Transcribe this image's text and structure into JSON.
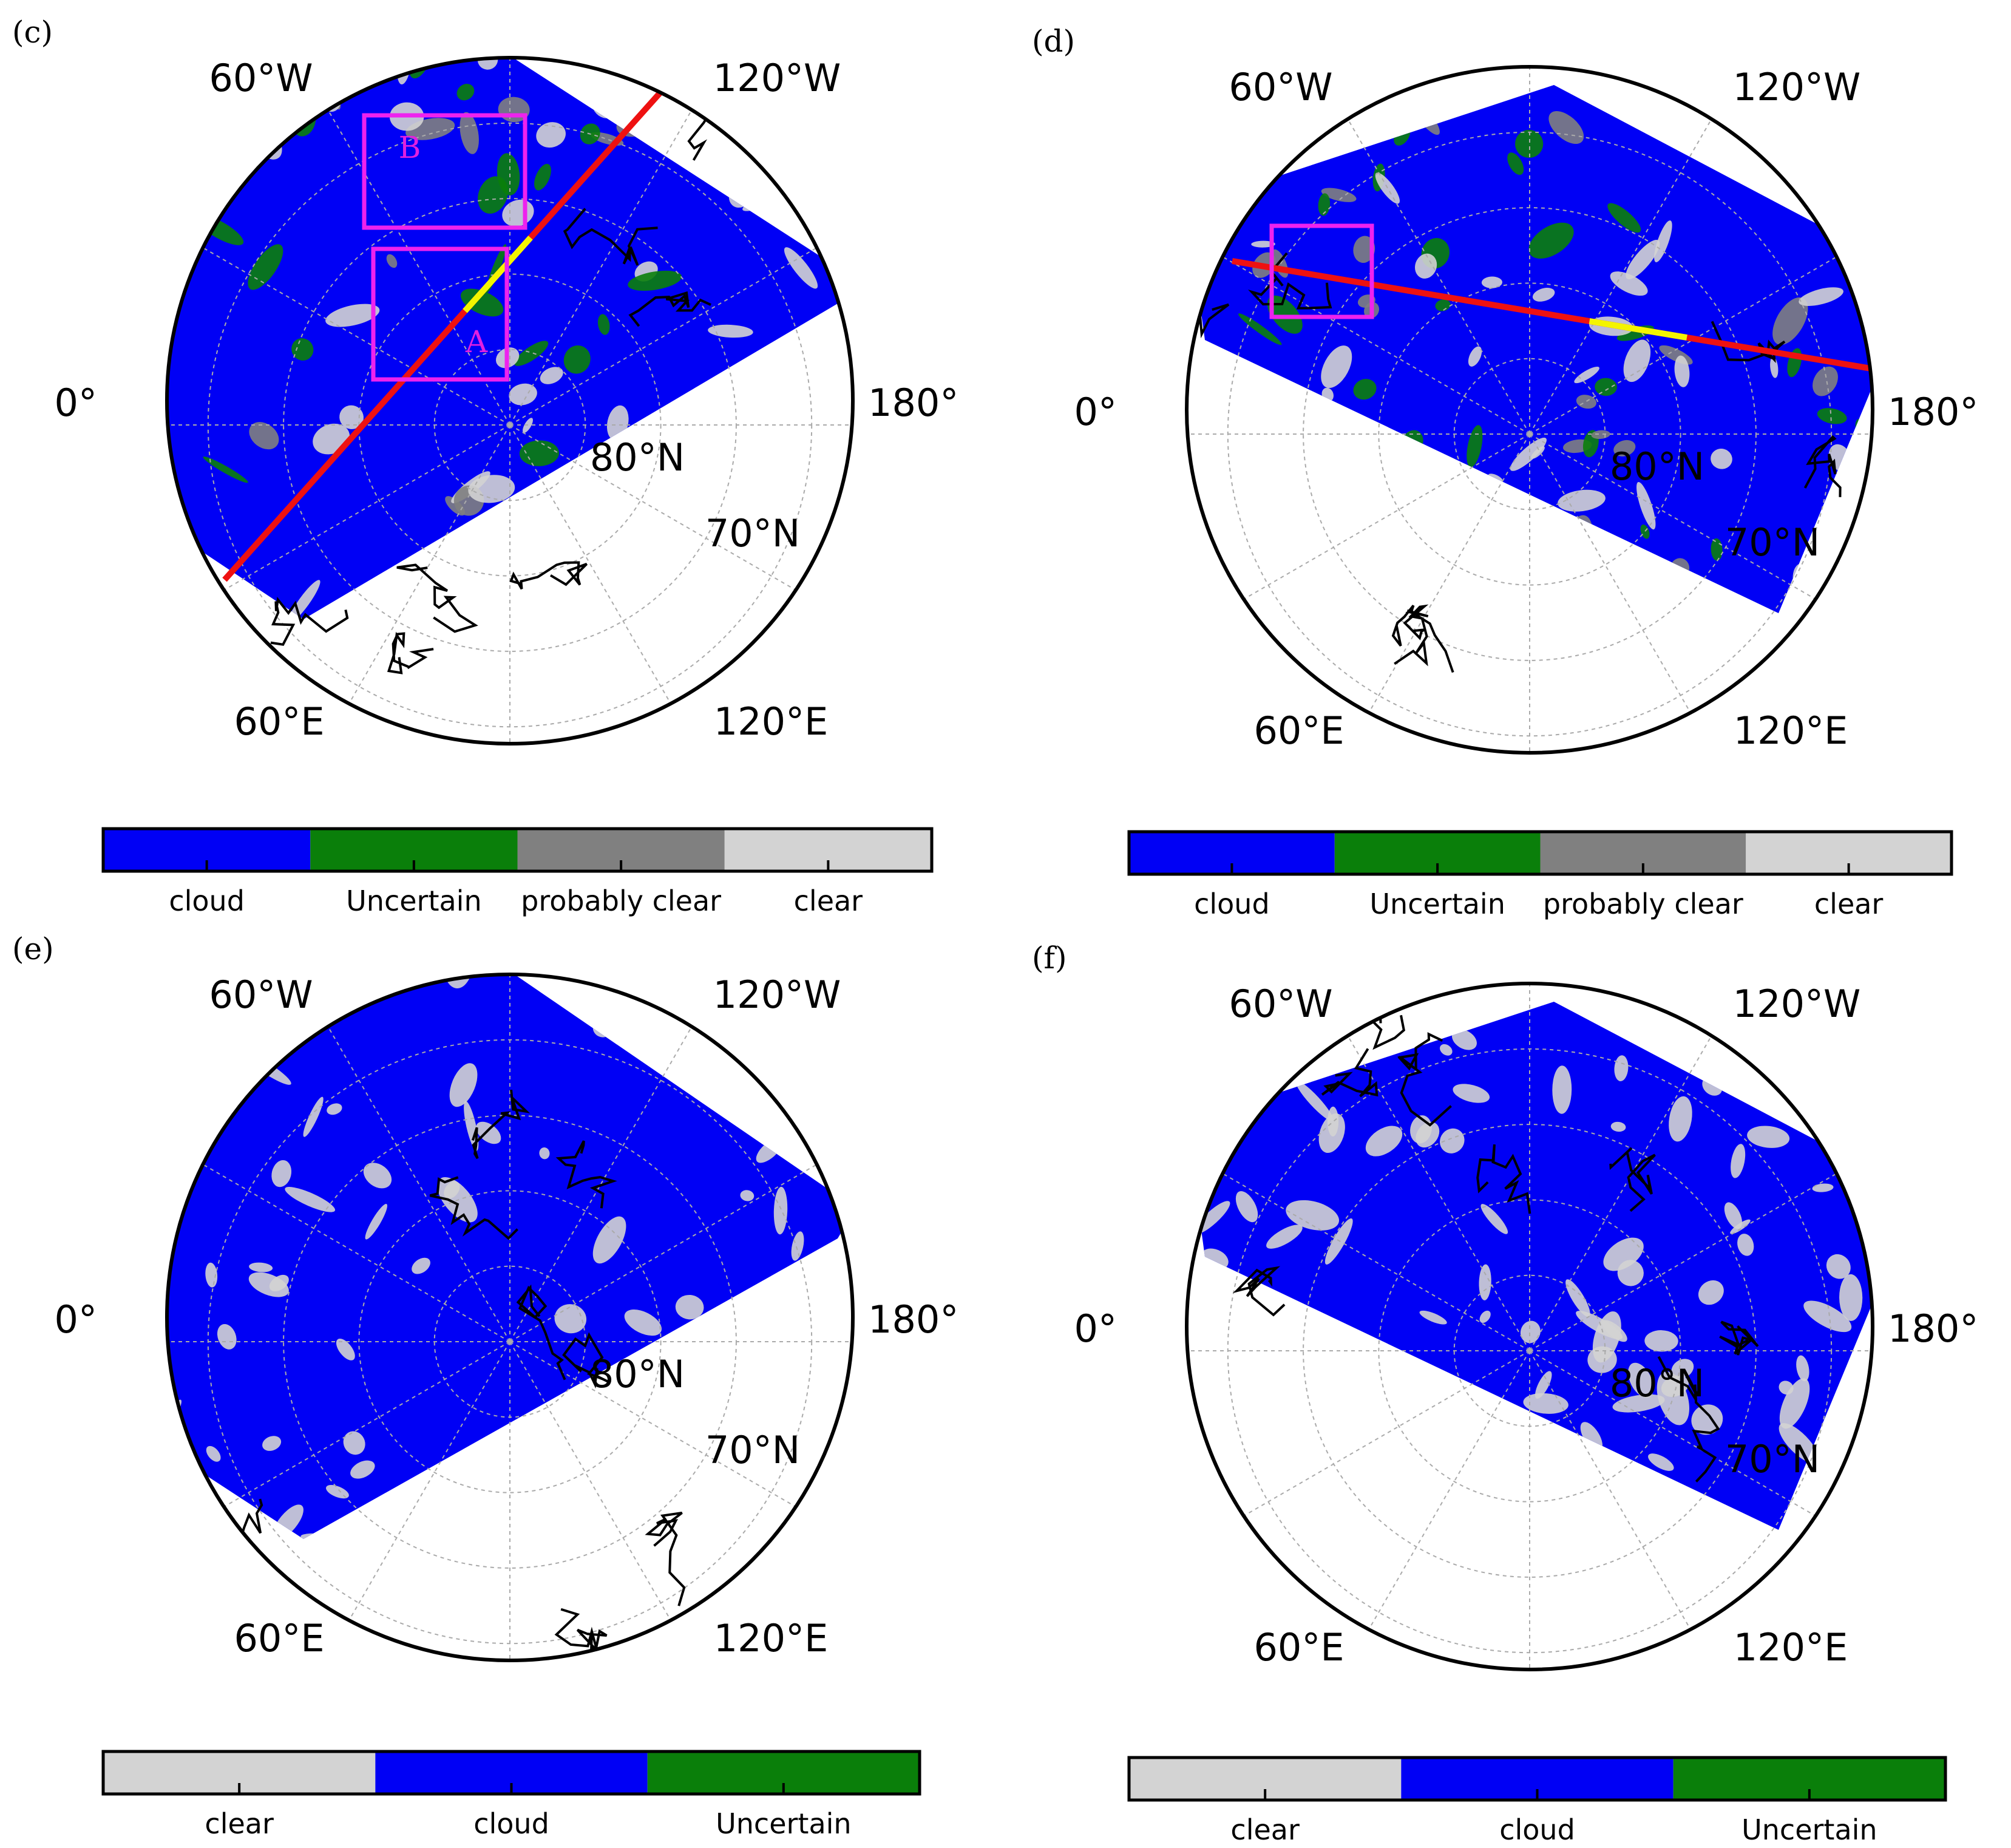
{
  "colors": {
    "cloud": "#0000f5",
    "uncertain": "#0a7f0a",
    "probably_clear": "#808080",
    "clear": "#d3d3d3",
    "outline": "#000000",
    "box": "#ee22ee",
    "track_red": "#ee1111",
    "track_yellow": "#f4f400"
  },
  "panels": [
    {
      "id": "c",
      "letter": "(c)",
      "lon_labels": [
        "60°W",
        "120°W",
        "0°",
        "180°",
        "60°E",
        "120°E"
      ],
      "lat_labels": [
        "80°N",
        "70°N"
      ],
      "boxes": [
        "B",
        "A"
      ],
      "colorbar": [
        "cloud",
        "Uncertain",
        "probably clear",
        "clear"
      ]
    },
    {
      "id": "d",
      "letter": "(d)",
      "lon_labels": [
        "60°W",
        "120°W",
        "0°",
        "180°",
        "60°E",
        "120°E"
      ],
      "lat_labels": [
        "80°N",
        "70°N"
      ],
      "boxes": [],
      "colorbar": [
        "cloud",
        "Uncertain",
        "probably clear",
        "clear"
      ]
    },
    {
      "id": "e",
      "letter": "(e)",
      "lon_labels": [
        "60°W",
        "120°W",
        "0°",
        "180°",
        "60°E",
        "120°E"
      ],
      "lat_labels": [
        "80°N",
        "70°N"
      ],
      "boxes": [],
      "colorbar": [
        "clear",
        "cloud",
        "Uncertain"
      ]
    },
    {
      "id": "f",
      "letter": "(f)",
      "lon_labels": [
        "60°W",
        "120°W",
        "0°",
        "180°",
        "60°E",
        "120°E"
      ],
      "lat_labels": [
        "80°N",
        "70°N"
      ],
      "boxes": [],
      "colorbar": [
        "clear",
        "cloud",
        "Uncertain"
      ]
    }
  ]
}
